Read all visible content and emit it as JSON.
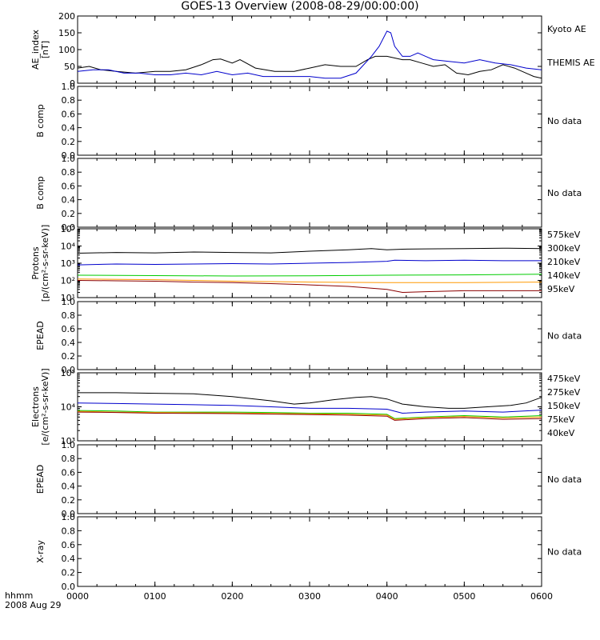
{
  "title": "GOES-13 Overview (2008-08-29/00:00:00)",
  "xaxis": {
    "ticks": [
      "0000",
      "0100",
      "0200",
      "0300",
      "0400",
      "0500",
      "0600"
    ],
    "corner_label_1": "hhmm",
    "corner_label_2": "2008 Aug 29",
    "range_hours": [
      0,
      6
    ]
  },
  "chart_data": [
    {
      "type": "line",
      "panel": "ae",
      "ylabel": [
        "AE_index",
        "[nT]"
      ],
      "ylim": [
        0,
        200
      ],
      "yticks": [
        "0",
        "50",
        "100",
        "150",
        "200"
      ],
      "legend": [
        {
          "text": "Kyoto AE",
          "color": "#000000"
        },
        {
          "text": "THEMIS AE",
          "color": "#0000cc"
        }
      ],
      "series": [
        {
          "name": "Kyoto AE",
          "color": "#000000",
          "x": [
            0,
            0.15,
            0.3,
            0.5,
            0.75,
            1.0,
            1.2,
            1.4,
            1.6,
            1.75,
            1.85,
            2.0,
            2.1,
            2.3,
            2.55,
            2.8,
            3.0,
            3.2,
            3.4,
            3.6,
            3.75,
            3.85,
            4.0,
            4.1,
            4.2,
            4.3,
            4.45,
            4.6,
            4.75,
            4.9,
            5.05,
            5.2,
            5.35,
            5.5,
            5.65,
            5.8,
            5.9,
            6.0
          ],
          "y": [
            45,
            50,
            40,
            35,
            30,
            35,
            35,
            40,
            55,
            70,
            72,
            60,
            70,
            45,
            35,
            35,
            45,
            55,
            50,
            50,
            70,
            80,
            80,
            75,
            70,
            70,
            60,
            50,
            55,
            30,
            25,
            35,
            40,
            55,
            45,
            30,
            20,
            15
          ]
        },
        {
          "name": "THEMIS AE",
          "color": "#0000cc",
          "x": [
            0,
            0.2,
            0.4,
            0.6,
            0.8,
            1.0,
            1.2,
            1.4,
            1.6,
            1.8,
            2.0,
            2.2,
            2.4,
            2.6,
            2.8,
            3.0,
            3.2,
            3.4,
            3.6,
            3.7,
            3.8,
            3.9,
            4.0,
            4.05,
            4.1,
            4.2,
            4.3,
            4.4,
            4.5,
            4.6,
            4.8,
            5.0,
            5.2,
            5.4,
            5.6,
            5.8,
            6.0
          ],
          "y": [
            35,
            40,
            40,
            30,
            30,
            25,
            25,
            30,
            25,
            35,
            25,
            30,
            20,
            20,
            20,
            20,
            15,
            15,
            30,
            55,
            80,
            110,
            155,
            150,
            110,
            80,
            80,
            90,
            80,
            70,
            65,
            60,
            70,
            60,
            55,
            45,
            40
          ]
        }
      ]
    },
    {
      "type": "line",
      "panel": "b1",
      "ylabel": [
        "B comp"
      ],
      "ylim": [
        0,
        1
      ],
      "yticks": [
        "0.0",
        "0.2",
        "0.4",
        "0.6",
        "0.8",
        "1.0"
      ],
      "note": "No data",
      "series": []
    },
    {
      "type": "line",
      "panel": "b2",
      "ylabel": [
        "B comp"
      ],
      "ylim": [
        0,
        1
      ],
      "yticks": [
        "0.0",
        "0.2",
        "0.4",
        "0.6",
        "0.8",
        "1.0"
      ],
      "note": "No data",
      "series": []
    },
    {
      "type": "line",
      "panel": "protons",
      "scale": "log",
      "ylabel": [
        "Protons",
        "[p/(cm²-s-sr-keV)]"
      ],
      "ylim": [
        10,
        100000
      ],
      "yticks": [
        "10¹",
        "10²",
        "10³",
        "10⁴",
        "10⁵"
      ],
      "legend": [
        {
          "text": "575keV",
          "color": "#8b0000"
        },
        {
          "text": "300keV",
          "color": "#ff9900"
        },
        {
          "text": "210keV",
          "color": "#00cc00"
        },
        {
          "text": "140keV",
          "color": "#0000cc"
        },
        {
          "text": "95keV",
          "color": "#000000"
        }
      ],
      "series": [
        {
          "name": "95keV",
          "color": "#000000",
          "x": [
            0,
            0.5,
            1,
            1.5,
            2,
            2.5,
            3,
            3.5,
            3.8,
            4,
            4.2,
            4.5,
            5,
            5.5,
            6
          ],
          "y": [
            3800,
            4200,
            4000,
            4500,
            4200,
            4000,
            5000,
            6000,
            7000,
            6000,
            6500,
            6800,
            7000,
            7500,
            7000
          ]
        },
        {
          "name": "140keV",
          "color": "#0000cc",
          "x": [
            0,
            0.5,
            1,
            1.5,
            2,
            2.5,
            3,
            3.5,
            4,
            4.1,
            4.5,
            5,
            5.5,
            6
          ],
          "y": [
            800,
            900,
            850,
            900,
            950,
            900,
            1000,
            1100,
            1300,
            1500,
            1400,
            1500,
            1400,
            1400
          ]
        },
        {
          "name": "210keV",
          "color": "#00cc00",
          "x": [
            0,
            1,
            2,
            3,
            4,
            5,
            6
          ],
          "y": [
            200,
            190,
            180,
            185,
            200,
            210,
            230
          ]
        },
        {
          "name": "300keV",
          "color": "#ff9900",
          "x": [
            0,
            1,
            2,
            3,
            4,
            5,
            6
          ],
          "y": [
            120,
            110,
            90,
            80,
            75,
            75,
            80
          ]
        },
        {
          "name": "575keV",
          "color": "#8b0000",
          "x": [
            0,
            0.5,
            1,
            1.5,
            2,
            2.5,
            3,
            3.5,
            4,
            4.2,
            4.5,
            5,
            5.5,
            6
          ],
          "y": [
            100,
            95,
            90,
            80,
            75,
            65,
            55,
            45,
            30,
            20,
            22,
            25,
            25,
            25
          ]
        }
      ]
    },
    {
      "type": "line",
      "panel": "epead1",
      "ylabel": [
        "EPEAD"
      ],
      "ylim": [
        0,
        1
      ],
      "yticks": [
        "0.0",
        "0.2",
        "0.4",
        "0.6",
        "0.8",
        "1.0"
      ],
      "note": "No data",
      "series": []
    },
    {
      "type": "line",
      "panel": "electrons",
      "scale": "log",
      "ylabel": [
        "Electrons",
        "[e/(cm²-s-sr-keV)]"
      ],
      "ylim": [
        1000,
        100000
      ],
      "yticks": [
        "10³",
        "10⁴",
        "10⁵"
      ],
      "legend": [
        {
          "text": "475keV",
          "color": "#8b0000"
        },
        {
          "text": "275keV",
          "color": "#ff9900"
        },
        {
          "text": "150keV",
          "color": "#00cc00"
        },
        {
          "text": "75keV",
          "color": "#0000cc"
        },
        {
          "text": "40keV",
          "color": "#000000"
        }
      ],
      "series": [
        {
          "name": "40keV",
          "color": "#000000",
          "x": [
            0,
            0.5,
            1,
            1.5,
            2,
            2.5,
            2.8,
            3,
            3.3,
            3.6,
            3.8,
            4,
            4.2,
            4.5,
            4.8,
            5,
            5.3,
            5.6,
            5.8,
            6
          ],
          "y": [
            26000,
            26000,
            25000,
            24000,
            20000,
            15000,
            12000,
            13000,
            16000,
            19000,
            20000,
            17000,
            12000,
            10000,
            9000,
            9000,
            10000,
            11000,
            13000,
            19000
          ]
        },
        {
          "name": "75keV",
          "color": "#0000cc",
          "x": [
            0,
            0.5,
            1,
            1.5,
            2,
            2.5,
            3,
            3.5,
            4,
            4.2,
            4.5,
            5,
            5.5,
            6
          ],
          "y": [
            13000,
            12500,
            12000,
            11500,
            11000,
            10000,
            9000,
            9000,
            8500,
            6500,
            7000,
            7500,
            7000,
            8000
          ]
        },
        {
          "name": "150keV",
          "color": "#00cc00",
          "x": [
            0,
            0.5,
            1,
            1.5,
            2,
            2.5,
            3,
            3.5,
            4,
            4.1,
            4.5,
            5,
            5.5,
            6
          ],
          "y": [
            7800,
            7500,
            7000,
            7000,
            7000,
            6800,
            6500,
            6500,
            6000,
            4500,
            5000,
            5500,
            5000,
            5500
          ]
        },
        {
          "name": "275keV",
          "color": "#ff9900",
          "x": [
            0,
            0.5,
            1,
            1.5,
            2,
            2.5,
            3,
            3.5,
            4,
            4.1,
            4.5,
            5,
            5.5,
            6
          ],
          "y": [
            7400,
            7000,
            6800,
            6700,
            6600,
            6400,
            6200,
            6000,
            5700,
            4300,
            4800,
            5200,
            4700,
            5000
          ]
        },
        {
          "name": "475keV",
          "color": "#8b0000",
          "x": [
            0,
            0.5,
            1,
            1.5,
            2,
            2.5,
            3,
            3.5,
            4,
            4.1,
            4.5,
            5,
            5.5,
            6
          ],
          "y": [
            7000,
            6800,
            6500,
            6400,
            6300,
            6100,
            5900,
            5700,
            5300,
            4000,
            4500,
            4800,
            4300,
            4500
          ]
        }
      ]
    },
    {
      "type": "line",
      "panel": "epead2",
      "ylabel": [
        "EPEAD"
      ],
      "ylim": [
        0,
        1
      ],
      "yticks": [
        "0.0",
        "0.2",
        "0.4",
        "0.6",
        "0.8",
        "1.0"
      ],
      "note": "No data",
      "series": []
    },
    {
      "type": "line",
      "panel": "xray",
      "ylabel": [
        "X-ray"
      ],
      "ylim": [
        0,
        1
      ],
      "yticks": [
        "0.0",
        "0.2",
        "0.4",
        "0.6",
        "0.8",
        "1.0"
      ],
      "note": "No data",
      "series": []
    }
  ]
}
